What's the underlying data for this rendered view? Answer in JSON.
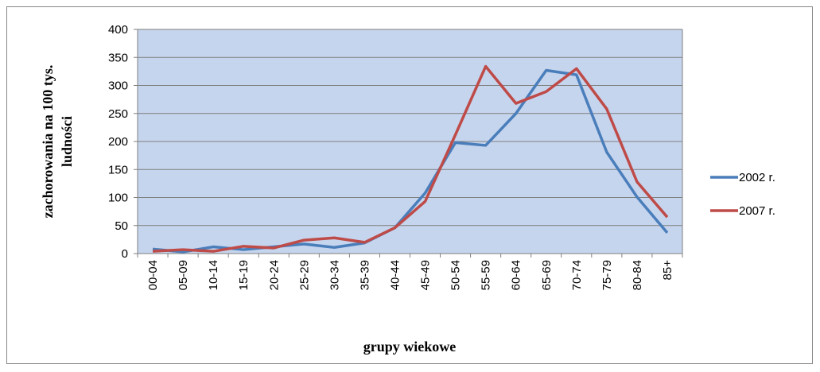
{
  "chart_data": {
    "type": "line",
    "categories": [
      "00-04",
      "05-09",
      "10-14",
      "15-19",
      "20-24",
      "25-29",
      "30-34",
      "35-39",
      "40-44",
      "45-49",
      "50-54",
      "55-59",
      "60-64",
      "65-69",
      "70-74",
      "75-79",
      "80-84",
      "85+"
    ],
    "series": [
      {
        "name": "2002 r.",
        "color": "#4a7ebb",
        "values": [
          8,
          3,
          12,
          7,
          12,
          17,
          11,
          19,
          46,
          108,
          198,
          193,
          250,
          327,
          319,
          181,
          101,
          37
        ]
      },
      {
        "name": "2007 r.",
        "color": "#be4b48",
        "values": [
          4,
          7,
          4,
          13,
          10,
          24,
          28,
          20,
          46,
          93,
          212,
          334,
          268,
          289,
          330,
          258,
          128,
          65
        ]
      }
    ],
    "x_label": "grupy wiekowe",
    "y_label_lines": [
      "zachorowania na 100 tys.",
      "ludności"
    ],
    "ylim": [
      0,
      400
    ],
    "yticks": [
      0,
      50,
      100,
      150,
      200,
      250,
      300,
      350,
      400
    ],
    "grid": true,
    "legend": "right"
  }
}
